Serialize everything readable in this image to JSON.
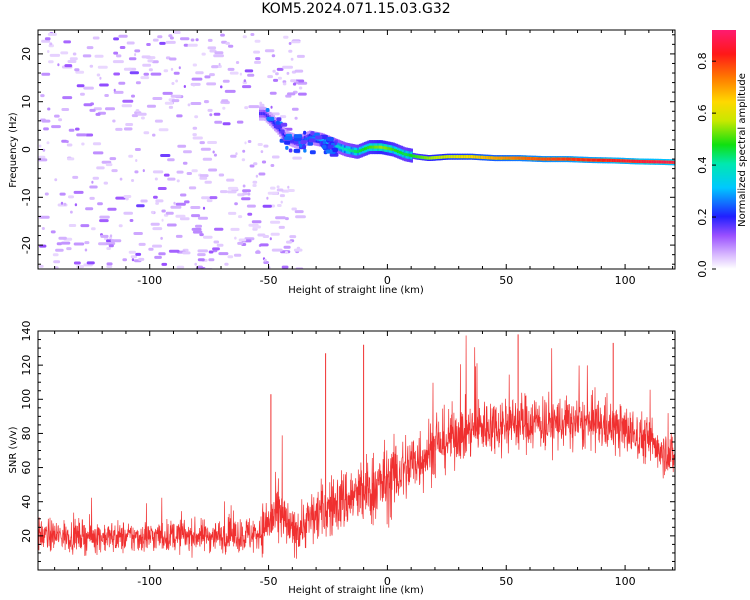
{
  "title": "KOM5.2024.071.15.03.G32",
  "chart_data": [
    {
      "type": "heatmap",
      "xlabel": "Height of straight line (km)",
      "ylabel": "Frequency (Hz)",
      "xlim": [
        -147,
        121
      ],
      "ylim": [
        -25,
        25
      ],
      "xticks": [
        -100,
        -50,
        0,
        50,
        100
      ],
      "yticks": [
        -20,
        -10,
        0,
        10,
        20
      ],
      "colorbar": {
        "label": "Normalized spectral amplitude",
        "range": [
          0.0,
          0.92
        ],
        "ticks": [
          "0.0",
          "0.2",
          "0.4",
          "0.6",
          "0.8"
        ]
      },
      "ridge": {
        "x": [
          -52,
          -47,
          -43,
          -38,
          -33,
          -28,
          -23,
          -18,
          -13,
          -8,
          -3,
          2,
          7,
          12,
          17,
          25,
          35,
          45,
          55,
          65,
          75,
          85,
          95,
          105,
          115,
          121
        ],
        "y": [
          7.5,
          5.0,
          2.5,
          1.5,
          2.5,
          2.0,
          1.0,
          0.0,
          -0.5,
          0.5,
          0.5,
          0.0,
          -1.0,
          -1.5,
          -1.8,
          -1.5,
          -1.5,
          -1.8,
          -1.8,
          -2.0,
          -2.0,
          -2.2,
          -2.3,
          -2.5,
          -2.6,
          -2.7
        ],
        "amplitude": [
          0.18,
          0.22,
          0.2,
          0.22,
          0.25,
          0.3,
          0.35,
          0.4,
          0.45,
          0.5,
          0.55,
          0.5,
          0.45,
          0.5,
          0.55,
          0.6,
          0.65,
          0.7,
          0.75,
          0.78,
          0.8,
          0.82,
          0.84,
          0.86,
          0.88,
          0.88
        ]
      }
    },
    {
      "type": "line",
      "xlabel": "Height of straight line (km)",
      "ylabel": "SNR (v/v)",
      "xlim": [
        -147,
        121
      ],
      "ylim": [
        0,
        140
      ],
      "xticks": [
        -100,
        -50,
        0,
        50,
        100
      ],
      "yticks": [
        20,
        40,
        60,
        80,
        100,
        120,
        140
      ],
      "color": "#f03030",
      "envelope": {
        "x": [
          -147,
          -130,
          -110,
          -90,
          -70,
          -55,
          -50,
          -45,
          -40,
          -30,
          -20,
          -10,
          0,
          10,
          20,
          30,
          40,
          50,
          60,
          70,
          80,
          90,
          100,
          110,
          121
        ],
        "mean": [
          20,
          20,
          19,
          20,
          20,
          21,
          28,
          32,
          22,
          32,
          40,
          45,
          52,
          62,
          72,
          80,
          84,
          86,
          87,
          86,
          86,
          85,
          82,
          76,
          66
        ],
        "spread": [
          10,
          10,
          10,
          10,
          10,
          12,
          18,
          20,
          14,
          18,
          20,
          22,
          24,
          22,
          20,
          18,
          18,
          18,
          18,
          18,
          16,
          16,
          16,
          15,
          14
        ]
      },
      "spikes": [
        {
          "x": -49,
          "y": 103
        },
        {
          "x": -26,
          "y": 127
        },
        {
          "x": -10,
          "y": 132
        },
        {
          "x": 55,
          "y": 138
        },
        {
          "x": 95,
          "y": 133
        }
      ]
    }
  ]
}
